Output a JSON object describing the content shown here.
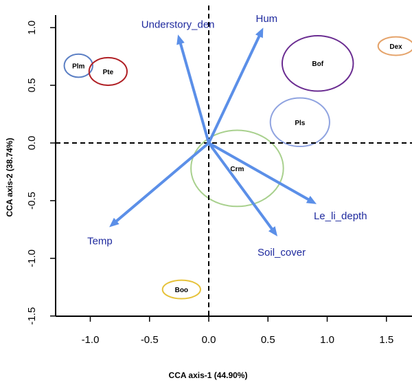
{
  "chart_data": {
    "type": "scatter",
    "title": "",
    "xlabel": "CCA axis-1 (44.90%)",
    "ylabel": "CCA axis-2 (38.74%)",
    "xlim": [
      -1.3,
      1.75
    ],
    "ylim": [
      -1.5,
      1.1
    ],
    "xticks": [
      "-1.0",
      "-0.5",
      "0.0",
      "0.5",
      "1.0",
      "1.5"
    ],
    "yticks": [
      "-1.5",
      "-1.0",
      "-0.5",
      "0.0",
      "0.5",
      "1.0"
    ],
    "reference_lines": {
      "x": 0,
      "y": 0,
      "style": "dashed"
    },
    "arrow_color": "#5b8fe8",
    "vectors": [
      {
        "name": "Understory_den",
        "x": -0.26,
        "y": 0.94
      },
      {
        "name": "Hum",
        "x": 0.46,
        "y": 1.0
      },
      {
        "name": "Le_li_depth",
        "x": 0.91,
        "y": -0.53
      },
      {
        "name": "Soil_cover",
        "x": 0.58,
        "y": -0.81
      },
      {
        "name": "Temp",
        "x": -0.84,
        "y": -0.73
      }
    ],
    "groups": [
      {
        "name": "Plm",
        "x": -1.1,
        "y": 0.67,
        "rx": 0.12,
        "ry": 0.1,
        "color": "#5b7fc4"
      },
      {
        "name": "Pte",
        "x": -0.85,
        "y": 0.62,
        "rx": 0.16,
        "ry": 0.12,
        "color": "#b01f24"
      },
      {
        "name": "Bof",
        "x": 0.92,
        "y": 0.69,
        "rx": 0.3,
        "ry": 0.24,
        "color": "#6a2c91"
      },
      {
        "name": "Dex",
        "x": 1.58,
        "y": 0.84,
        "rx": 0.15,
        "ry": 0.08,
        "color": "#e5a36a"
      },
      {
        "name": "Pls",
        "x": 0.77,
        "y": 0.18,
        "rx": 0.25,
        "ry": 0.21,
        "color": "#8fa3e0"
      },
      {
        "name": "Crm",
        "x": 0.24,
        "y": -0.22,
        "rx": 0.39,
        "ry": 0.33,
        "color": "#a8d08d"
      },
      {
        "name": "Boo",
        "x": -0.23,
        "y": -1.27,
        "rx": 0.16,
        "ry": 0.08,
        "color": "#e6c23a"
      }
    ]
  }
}
